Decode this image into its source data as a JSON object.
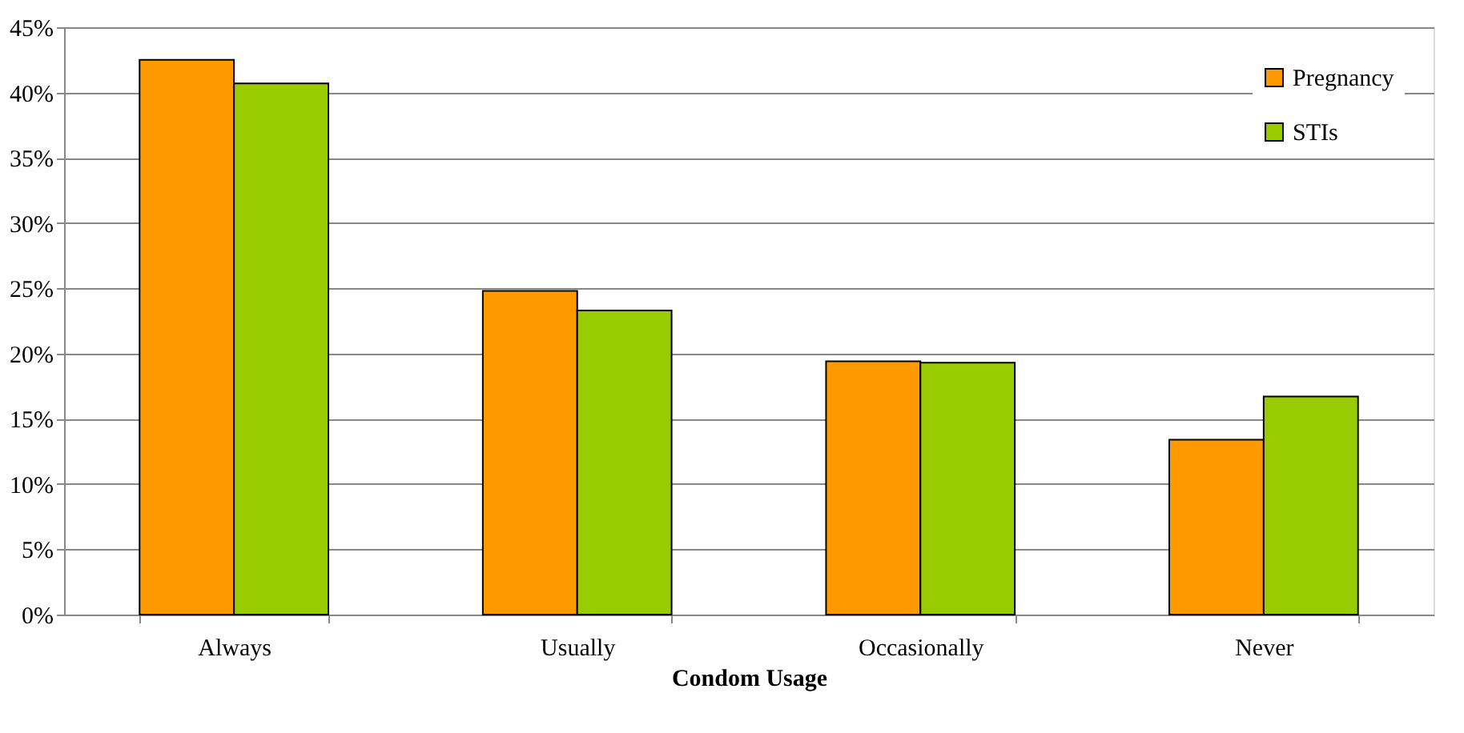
{
  "chart_data": {
    "type": "bar",
    "xlabel": "Condom Usage",
    "categories": [
      "Always",
      "Usually",
      "Occasionally",
      "Never"
    ],
    "series": [
      {
        "name": "Pregnancy",
        "color": "#ff9900",
        "values": [
          42.5,
          24.8,
          19.4,
          13.4
        ]
      },
      {
        "name": "STIs",
        "color": "#99cc00",
        "values": [
          40.7,
          23.3,
          19.3,
          16.7
        ]
      }
    ],
    "ylim": [
      0,
      45
    ],
    "yticks": [
      {
        "value": 0,
        "label": "0%"
      },
      {
        "value": 5,
        "label": "5%"
      },
      {
        "value": 10,
        "label": "10%"
      },
      {
        "value": 15,
        "label": "15%"
      },
      {
        "value": 20,
        "label": "20%"
      },
      {
        "value": 25,
        "label": "25%"
      },
      {
        "value": 30,
        "label": "30%"
      },
      {
        "value": 35,
        "label": "35%"
      },
      {
        "value": 40,
        "label": "40%"
      },
      {
        "value": 45,
        "label": "45%"
      }
    ],
    "grid": "y",
    "legend": "top right"
  }
}
